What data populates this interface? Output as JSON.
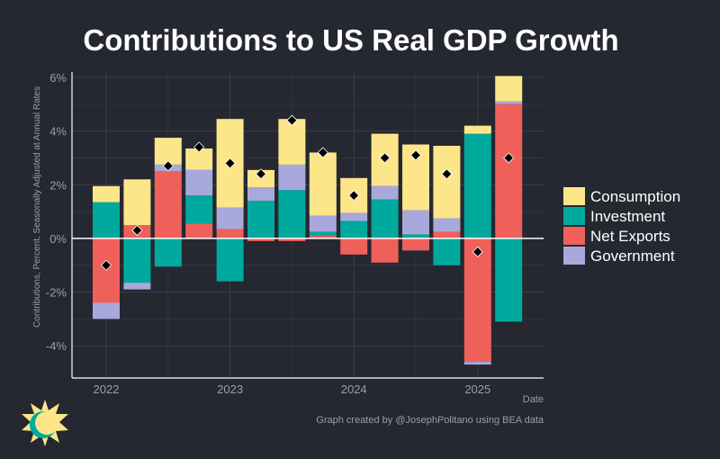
{
  "chart_data": {
    "type": "bar",
    "stacked": true,
    "title": "Contributions to US Real GDP Growth",
    "ylabel": "Contributions, Percent, Seasonally Adjusted at Annual Rates",
    "xlabel": "Date",
    "ylim": [
      -5.2,
      6.2
    ],
    "y_ticks": [
      -4,
      -2,
      0,
      2,
      4,
      6
    ],
    "y_tick_labels": [
      "-4%",
      "-2%",
      "0%",
      "2%",
      "4%",
      "6%"
    ],
    "x_tick_labels": [
      "2022",
      "2023",
      "2024",
      "2025"
    ],
    "x_tick_quarters": [
      0,
      4,
      8,
      12
    ],
    "categories": [
      "2022 Q1",
      "2022 Q2",
      "2022 Q3",
      "2022 Q4",
      "2023 Q1",
      "2023 Q2",
      "2023 Q3",
      "2023 Q4",
      "2024 Q1",
      "2024 Q2",
      "2024 Q3",
      "2024 Q4",
      "2025 Q1",
      "2025 Q2"
    ],
    "series": [
      {
        "name": "Net Exports",
        "color": "#f0605a",
        "values": [
          -2.4,
          0.5,
          2.5,
          0.55,
          0.35,
          -0.1,
          -0.1,
          0.1,
          -0.6,
          -0.9,
          -0.45,
          0.25,
          -4.6,
          5.0
        ]
      },
      {
        "name": "Investment",
        "color": "#00a99d",
        "values": [
          1.35,
          -1.65,
          -1.05,
          1.05,
          -1.6,
          1.4,
          1.8,
          0.15,
          0.65,
          1.45,
          0.15,
          -1.0,
          3.9,
          -3.1
        ]
      },
      {
        "name": "Government",
        "color": "#a8a8dc",
        "values": [
          -0.6,
          -0.25,
          0.25,
          0.95,
          0.8,
          0.5,
          0.95,
          0.6,
          0.3,
          0.5,
          0.9,
          0.5,
          -0.1,
          0.1
        ]
      },
      {
        "name": "Consumption",
        "color": "#fde68a",
        "values": [
          0.6,
          1.7,
          1.0,
          0.8,
          3.3,
          0.65,
          1.7,
          2.35,
          1.3,
          1.95,
          2.45,
          2.7,
          0.3,
          0.95
        ]
      }
    ],
    "gdp_markers": [
      -1.0,
      0.3,
      2.7,
      3.4,
      2.8,
      2.4,
      4.4,
      3.2,
      1.6,
      3.0,
      3.1,
      2.4,
      -0.5,
      3.0
    ],
    "legend": {
      "placement": "right",
      "entries": [
        {
          "name": "Consumption",
          "color": "#fde68a"
        },
        {
          "name": "Investment",
          "color": "#00a99d"
        },
        {
          "name": "Net Exports",
          "color": "#f0605a"
        },
        {
          "name": "Government",
          "color": "#a8a8dc"
        }
      ]
    }
  },
  "footer": {
    "credit": "Graph created by @JosephPolitano using BEA data"
  },
  "colors": {
    "background": "#252830",
    "grid": "#3a3e48",
    "axis_text": "#9a9ea8",
    "marker": "#000000"
  }
}
